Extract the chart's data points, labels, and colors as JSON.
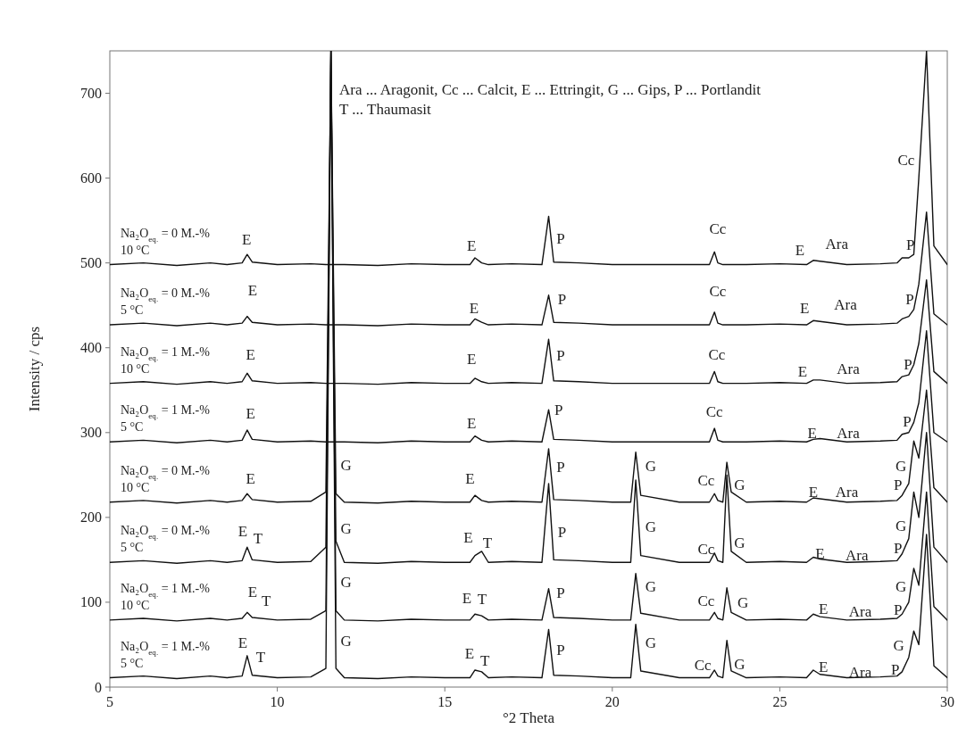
{
  "chart_data": {
    "type": "line",
    "xlabel": "°2 Theta",
    "ylabel": "Intensity / cps",
    "xlim": [
      5,
      30
    ],
    "xticks": [
      5,
      10,
      15,
      20,
      25,
      30
    ],
    "ylim": [
      0,
      750
    ],
    "yticks": [
      0,
      100,
      200,
      300,
      400,
      500,
      600,
      700
    ],
    "x": [
      5,
      6,
      7,
      8,
      8.5,
      8.95,
      9.1,
      9.25,
      10,
      11,
      11.45,
      11.6,
      11.75,
      12,
      13,
      14,
      15,
      15.75,
      15.9,
      16.1,
      16.3,
      17,
      17.9,
      18.1,
      18.25,
      19,
      20,
      20.55,
      20.7,
      20.85,
      22,
      22.9,
      23.05,
      23.15,
      23.3,
      23.42,
      23.55,
      24,
      25,
      25.8,
      26,
      26.2,
      27,
      28,
      28.5,
      28.65,
      28.85,
      29,
      29.15,
      29.38,
      29.6,
      30
    ],
    "series": [
      {
        "name": "Na₂O$_{eq.}$ = 0 M.-%\n10 °C",
        "color": "#111111",
        "values": [
          498,
          500,
          497,
          500,
          498,
          500,
          510,
          501,
          498,
          499,
          498,
          498,
          498,
          498,
          497,
          499,
          498,
          498,
          506,
          500,
          498,
          499,
          498,
          555,
          501,
          500,
          498,
          498,
          498,
          498,
          498,
          498,
          513,
          500,
          498,
          498,
          498,
          498,
          499,
          498,
          503,
          502,
          498,
          499,
          500,
          506,
          506,
          510,
          600,
          750,
          520,
          498
        ]
      },
      {
        "name": "Na₂O$_{eq.}$ = 0 M.-%\n5 °C",
        "color": "#111111",
        "values": [
          427,
          429,
          426,
          429,
          427,
          429,
          437,
          430,
          427,
          428,
          427,
          427,
          427,
          427,
          426,
          428,
          427,
          427,
          434,
          430,
          427,
          428,
          427,
          462,
          430,
          429,
          427,
          427,
          427,
          427,
          427,
          427,
          442,
          429,
          427,
          427,
          427,
          427,
          428,
          427,
          432,
          431,
          427,
          428,
          429,
          434,
          437,
          445,
          475,
          560,
          440,
          427
        ]
      },
      {
        "name": "Na₂O$_{eq.}$ = 1 M.-%\n10 °C",
        "color": "#111111",
        "values": [
          358,
          360,
          357,
          360,
          358,
          360,
          370,
          361,
          358,
          359,
          358,
          358,
          358,
          358,
          357,
          359,
          358,
          358,
          364,
          360,
          358,
          359,
          358,
          410,
          361,
          360,
          358,
          358,
          358,
          358,
          358,
          358,
          372,
          360,
          358,
          358,
          358,
          358,
          359,
          358,
          362,
          362,
          358,
          359,
          360,
          366,
          368,
          380,
          405,
          480,
          372,
          358
        ]
      },
      {
        "name": "Na₂O$_{eq.}$ = 1 M.-%\n5 °C",
        "color": "#111111",
        "values": [
          289,
          291,
          288,
          291,
          289,
          291,
          303,
          292,
          289,
          290,
          289,
          289,
          289,
          289,
          288,
          290,
          289,
          289,
          296,
          291,
          289,
          290,
          289,
          327,
          292,
          291,
          289,
          289,
          289,
          289,
          289,
          289,
          305,
          291,
          289,
          289,
          289,
          289,
          290,
          289,
          292,
          293,
          289,
          290,
          291,
          298,
          300,
          312,
          335,
          420,
          300,
          289
        ]
      },
      {
        "name": "Na₂O$_{eq.}$ = 0 M.-%\n10 °C",
        "color": "#111111",
        "values": [
          218,
          220,
          217,
          220,
          218,
          220,
          228,
          221,
          218,
          219,
          230,
          750,
          228,
          218,
          217,
          219,
          218,
          218,
          226,
          220,
          218,
          219,
          218,
          281,
          221,
          220,
          218,
          218,
          277,
          226,
          218,
          218,
          228,
          220,
          218,
          265,
          230,
          218,
          219,
          218,
          223,
          222,
          218,
          219,
          220,
          226,
          240,
          290,
          270,
          350,
          235,
          218
        ]
      },
      {
        "name": "Na₂O$_{eq.}$ = 0 M.-%\n5 °C",
        "color": "#111111",
        "values": [
          147,
          149,
          146,
          149,
          147,
          149,
          165,
          150,
          147,
          148,
          165,
          750,
          172,
          147,
          146,
          148,
          147,
          147,
          155,
          160,
          147,
          148,
          147,
          240,
          150,
          149,
          147,
          147,
          244,
          155,
          147,
          147,
          158,
          149,
          147,
          250,
          160,
          147,
          148,
          147,
          153,
          151,
          147,
          148,
          149,
          157,
          175,
          230,
          200,
          300,
          165,
          147
        ]
      },
      {
        "name": "Na₂O$_{eq.}$ = 1 M.-%\n10 °C",
        "color": "#111111",
        "values": [
          79,
          81,
          78,
          81,
          79,
          81,
          88,
          82,
          79,
          80,
          90,
          750,
          90,
          79,
          78,
          80,
          79,
          79,
          86,
          84,
          79,
          80,
          79,
          116,
          82,
          81,
          79,
          79,
          134,
          87,
          79,
          79,
          88,
          81,
          79,
          117,
          88,
          79,
          80,
          79,
          86,
          83,
          79,
          80,
          81,
          86,
          100,
          140,
          120,
          230,
          95,
          79
        ]
      },
      {
        "name": "Na₂O$_{eq.}$ = 1 M.-%\n5 °C",
        "color": "#111111",
        "values": [
          11,
          13,
          10,
          13,
          11,
          13,
          37,
          14,
          11,
          12,
          22,
          750,
          22,
          11,
          10,
          12,
          11,
          11,
          20,
          18,
          11,
          12,
          11,
          68,
          14,
          13,
          11,
          11,
          74,
          19,
          11,
          11,
          20,
          13,
          11,
          55,
          19,
          11,
          12,
          11,
          20,
          15,
          11,
          12,
          13,
          18,
          35,
          66,
          50,
          180,
          25,
          11
        ]
      }
    ],
    "annotations": [
      "Ara ... Aragonit, Cc ... Calcit, E ... Ettringit, G ... Gips, P ...  Portlandit",
      "T ... Thaumasit",
      {
        "text": "E",
        "x": 9.1,
        "y": 510
      },
      {
        "text": "E",
        "x": 15.9,
        "y": 506
      },
      {
        "text": "P",
        "x": 18.1,
        "y": 555
      },
      {
        "text": "Cc",
        "x": 23.05,
        "y": 513
      },
      {
        "text": "E",
        "x": 26,
        "y": 503
      },
      {
        "text": "Ara",
        "x": 26.2,
        "y": 502
      },
      {
        "text": "P",
        "x": 28.65,
        "y": 506
      },
      {
        "text": "Cc",
        "x": 29.15,
        "y": 600
      },
      {
        "text": "E",
        "x": 9.1,
        "y": 437
      },
      {
        "text": "E",
        "x": 15.9,
        "y": 434
      },
      {
        "text": "P",
        "x": 18.1,
        "y": 462
      },
      {
        "text": "Cc",
        "x": 23.05,
        "y": 442
      },
      {
        "text": "E",
        "x": 26,
        "y": 432
      },
      {
        "text": "Ara",
        "x": 26.2,
        "y": 431
      },
      {
        "text": "P",
        "x": 28.65,
        "y": 434
      },
      {
        "text": "E",
        "x": 9.1,
        "y": 370
      },
      {
        "text": "E",
        "x": 15.9,
        "y": 364
      },
      {
        "text": "P",
        "x": 18.1,
        "y": 410
      },
      {
        "text": "Cc",
        "x": 23.05,
        "y": 372
      },
      {
        "text": "E",
        "x": 26,
        "y": 362
      },
      {
        "text": "Ara",
        "x": 26.2,
        "y": 362
      },
      {
        "text": "P",
        "x": 28.65,
        "y": 366
      },
      {
        "text": "E",
        "x": 9.1,
        "y": 303
      },
      {
        "text": "E",
        "x": 15.9,
        "y": 296
      },
      {
        "text": "P",
        "x": 18.1,
        "y": 327
      },
      {
        "text": "Cc",
        "x": 23.05,
        "y": 305
      },
      {
        "text": "E",
        "x": 26,
        "y": 292
      },
      {
        "text": "Ara",
        "x": 26.2,
        "y": 293
      },
      {
        "text": "P",
        "x": 28.65,
        "y": 298
      },
      {
        "text": "E",
        "x": 9.1,
        "y": 228
      },
      {
        "text": "G",
        "x": 11.75,
        "y": 228
      },
      {
        "text": "E",
        "x": 15.9,
        "y": 226
      },
      {
        "text": "P",
        "x": 18.1,
        "y": 281
      },
      {
        "text": "G",
        "x": 20.7,
        "y": 277
      },
      {
        "text": "Cc",
        "x": 23.05,
        "y": 228
      },
      {
        "text": "G",
        "x": 23.42,
        "y": 265
      },
      {
        "text": "E",
        "x": 26,
        "y": 223
      },
      {
        "text": "Ara",
        "x": 26.2,
        "y": 222
      },
      {
        "text": "P",
        "x": 28.65,
        "y": 226
      },
      {
        "text": "G",
        "x": 29,
        "y": 290
      },
      {
        "text": "E",
        "x": 9.1,
        "y": 165
      },
      {
        "text": "T",
        "x": 9.1,
        "y": 165
      },
      {
        "text": "G",
        "x": 11.75,
        "y": 172
      },
      {
        "text": "E",
        "x": 15.9,
        "y": 155
      },
      {
        "text": "T",
        "x": 16.1,
        "y": 160
      },
      {
        "text": "P",
        "x": 18.1,
        "y": 240
      },
      {
        "text": "G",
        "x": 20.7,
        "y": 244
      },
      {
        "text": "Cc",
        "x": 23.05,
        "y": 158
      },
      {
        "text": "G",
        "x": 23.55,
        "y": 160
      },
      {
        "text": "E",
        "x": 26,
        "y": 153
      },
      {
        "text": "Ara",
        "x": 26.2,
        "y": 151
      },
      {
        "text": "P",
        "x": 28.65,
        "y": 157
      },
      {
        "text": "G",
        "x": 29,
        "y": 230
      },
      {
        "text": "E",
        "x": 9.1,
        "y": 88
      },
      {
        "text": "T",
        "x": 9.1,
        "y": 88
      },
      {
        "text": "G",
        "x": 11.75,
        "y": 90
      },
      {
        "text": "E",
        "x": 15.9,
        "y": 86
      },
      {
        "text": "T",
        "x": 16.1,
        "y": 84
      },
      {
        "text": "P",
        "x": 18.1,
        "y": 116
      },
      {
        "text": "G",
        "x": 20.7,
        "y": 134
      },
      {
        "text": "Cc",
        "x": 23.05,
        "y": 88
      },
      {
        "text": "G",
        "x": 23.42,
        "y": 117
      },
      {
        "text": "E",
        "x": 26,
        "y": 86
      },
      {
        "text": "Ara",
        "x": 26.2,
        "y": 83
      },
      {
        "text": "P",
        "x": 28.65,
        "y": 86
      },
      {
        "text": "G",
        "x": 29,
        "y": 140
      },
      {
        "text": "E",
        "x": 9.1,
        "y": 37
      },
      {
        "text": "T",
        "x": 9.1,
        "y": 37
      },
      {
        "text": "G",
        "x": 11.75,
        "y": 22
      },
      {
        "text": "E",
        "x": 15.9,
        "y": 20
      },
      {
        "text": "T",
        "x": 16.1,
        "y": 18
      },
      {
        "text": "P",
        "x": 18.1,
        "y": 68
      },
      {
        "text": "G",
        "x": 20.7,
        "y": 74
      },
      {
        "text": "Cc",
        "x": 23.05,
        "y": 20
      },
      {
        "text": "G",
        "x": 23.42,
        "y": 55
      },
      {
        "text": "E",
        "x": 26,
        "y": 20
      },
      {
        "text": "Ara",
        "x": 26.2,
        "y": 15
      },
      {
        "text": "P",
        "x": 28.65,
        "y": 18
      },
      {
        "text": "G",
        "x": 29,
        "y": 66
      }
    ]
  }
}
